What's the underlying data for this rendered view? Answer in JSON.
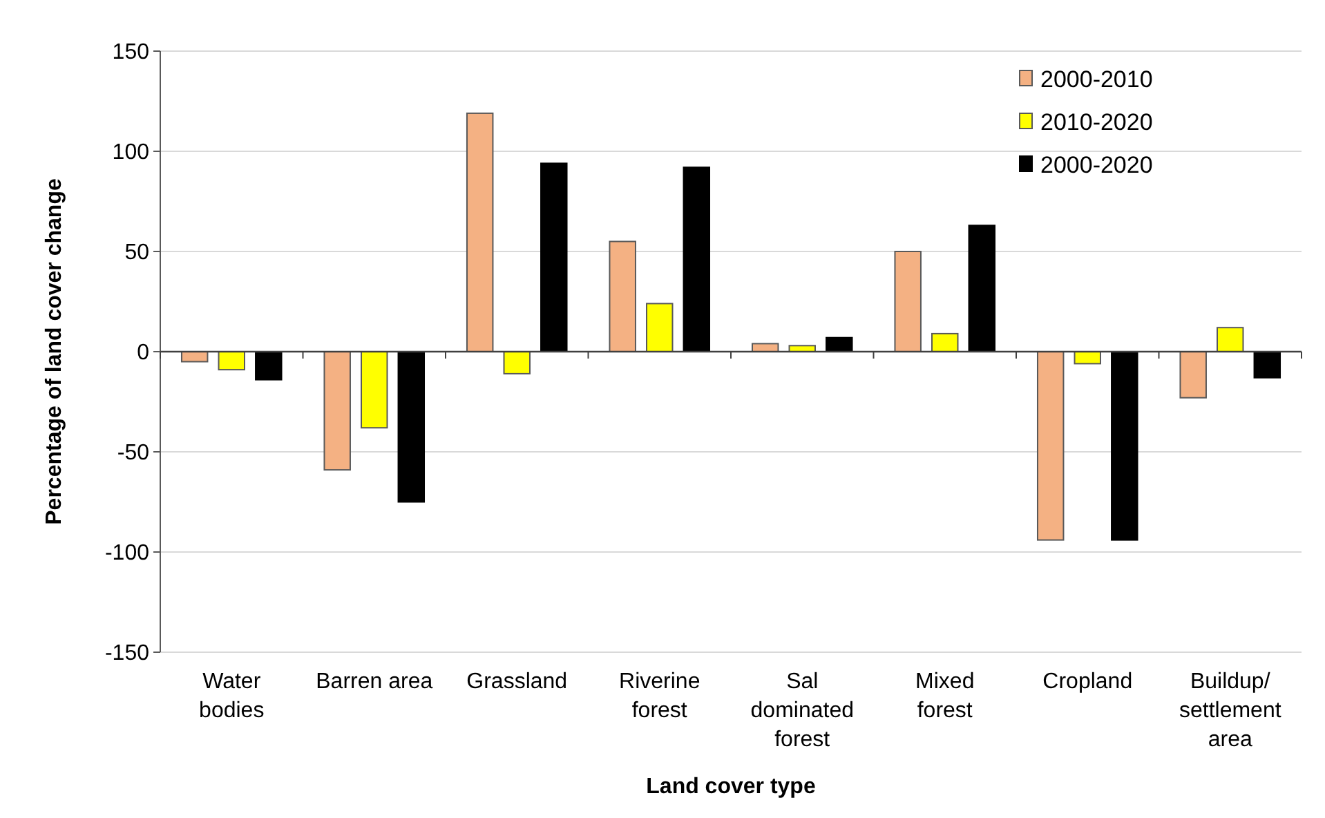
{
  "chart_data": {
    "type": "bar",
    "xlabel": "Land cover type",
    "ylabel": "Percentage of land cover change",
    "categories": [
      "Water bodies",
      "Barren area",
      "Grassland",
      "Riverine forest",
      "Sal dominated forest",
      "Mixed forest",
      "Cropland",
      "Buildup/ settlement area"
    ],
    "series": [
      {
        "name": "2000-2010",
        "color": "#f4b183",
        "values": [
          -5,
          -59,
          119,
          55,
          4,
          50,
          -94,
          -23
        ]
      },
      {
        "name": "2010-2020",
        "color": "#ffff00",
        "values": [
          -9,
          -38,
          -11,
          24,
          3,
          9,
          -6,
          12
        ]
      },
      {
        "name": "2000-2020",
        "color": "#000000",
        "values": [
          -14,
          -75,
          94,
          92,
          7,
          63,
          -94,
          -13
        ]
      }
    ],
    "ylim": [
      -150,
      150
    ],
    "yticks": [
      -150,
      -100,
      -50,
      0,
      50,
      100,
      150
    ],
    "grid": "y",
    "legend": "top right"
  }
}
